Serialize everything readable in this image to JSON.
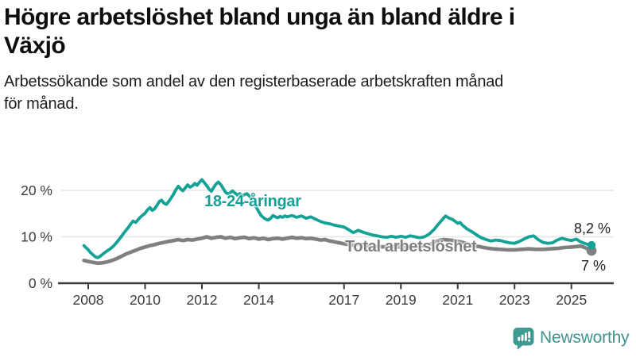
{
  "header": {
    "title_line1": "Högre arbetslöshet bland unga än bland äldre i",
    "title_line2": "Växjö",
    "subtitle_line1": "Arbetssökande som andel av den registerbaserade arbetskraften månad",
    "subtitle_line2": "för månad."
  },
  "footer": {
    "brand": "Newsworthy",
    "logo_icon": "bar-chart-speech-bubble-icon"
  },
  "colors": {
    "youth_series": "#14a296",
    "total_series": "#7f7f7f",
    "gridline": "#e5e5e5",
    "axis": "#3a3a3a",
    "tick_label": "#3c3c3c",
    "logo_teal": "#3d9b91"
  },
  "chart_data": {
    "type": "line",
    "title": "Högre arbetslöshet bland unga än bland äldre i Växjö",
    "subtitle": "Arbetssökande som andel av den registerbaserade arbetskraften månad för månad.",
    "unit": "%",
    "grid": true,
    "legend_position": "inline-labels",
    "x_range": [
      2007.85,
      2026.1
    ],
    "y_range": [
      0,
      23
    ],
    "x_ticks": [
      2008,
      2010,
      2012,
      2014,
      2017,
      2019,
      2021,
      2023,
      2025
    ],
    "y_ticks": [
      {
        "value": 0,
        "label": "0 %"
      },
      {
        "value": 10,
        "label": "10 %"
      },
      {
        "value": 20,
        "label": "20 %"
      }
    ],
    "series": [
      {
        "name": "18-24-åringar",
        "color": "#14a296",
        "end_label": "8,2 %",
        "end_value": 8.2,
        "points": [
          [
            2007.85,
            8.1
          ],
          [
            2008.0,
            7.2
          ],
          [
            2008.08,
            6.6
          ],
          [
            2008.17,
            6.1
          ],
          [
            2008.25,
            5.7
          ],
          [
            2008.33,
            5.5
          ],
          [
            2008.42,
            5.8
          ],
          [
            2008.5,
            6.2
          ],
          [
            2008.58,
            6.6
          ],
          [
            2008.67,
            7.0
          ],
          [
            2008.75,
            7.3
          ],
          [
            2008.83,
            7.7
          ],
          [
            2008.92,
            8.2
          ],
          [
            2009.0,
            8.8
          ],
          [
            2009.08,
            9.4
          ],
          [
            2009.17,
            10.1
          ],
          [
            2009.25,
            10.8
          ],
          [
            2009.33,
            11.4
          ],
          [
            2009.42,
            12.1
          ],
          [
            2009.5,
            12.8
          ],
          [
            2009.58,
            13.4
          ],
          [
            2009.67,
            13.1
          ],
          [
            2009.75,
            13.7
          ],
          [
            2009.83,
            14.2
          ],
          [
            2009.92,
            14.7
          ],
          [
            2010.0,
            15.1
          ],
          [
            2010.08,
            15.8
          ],
          [
            2010.17,
            16.3
          ],
          [
            2010.25,
            15.7
          ],
          [
            2010.33,
            16.0
          ],
          [
            2010.42,
            16.8
          ],
          [
            2010.5,
            17.6
          ],
          [
            2010.58,
            17.9
          ],
          [
            2010.67,
            17.2
          ],
          [
            2010.75,
            17.0
          ],
          [
            2010.83,
            17.6
          ],
          [
            2010.92,
            18.4
          ],
          [
            2011.0,
            19.2
          ],
          [
            2011.08,
            20.1
          ],
          [
            2011.17,
            20.9
          ],
          [
            2011.25,
            20.3
          ],
          [
            2011.33,
            19.9
          ],
          [
            2011.42,
            20.6
          ],
          [
            2011.5,
            21.2
          ],
          [
            2011.58,
            20.7
          ],
          [
            2011.67,
            21.0
          ],
          [
            2011.75,
            21.5
          ],
          [
            2011.83,
            21.1
          ],
          [
            2011.92,
            21.8
          ],
          [
            2012.0,
            22.3
          ],
          [
            2012.08,
            21.7
          ],
          [
            2012.17,
            21.0
          ],
          [
            2012.25,
            20.3
          ],
          [
            2012.33,
            19.8
          ],
          [
            2012.42,
            20.7
          ],
          [
            2012.5,
            21.4
          ],
          [
            2012.58,
            21.8
          ],
          [
            2012.67,
            21.2
          ],
          [
            2012.75,
            20.4
          ],
          [
            2012.83,
            19.6
          ],
          [
            2012.92,
            19.2
          ],
          [
            2013.0,
            19.5
          ],
          [
            2013.08,
            19.9
          ],
          [
            2013.17,
            19.4
          ],
          [
            2013.25,
            19.0
          ],
          [
            2013.33,
            19.3
          ],
          [
            2013.42,
            18.8
          ],
          [
            2013.5,
            19.1
          ],
          [
            2013.58,
            19.3
          ],
          [
            2013.67,
            18.8
          ],
          [
            2013.75,
            18.1
          ],
          [
            2013.83,
            17.2
          ],
          [
            2013.92,
            16.3
          ],
          [
            2014.0,
            15.4
          ],
          [
            2014.08,
            14.6
          ],
          [
            2014.17,
            14.1
          ],
          [
            2014.25,
            13.8
          ],
          [
            2014.33,
            13.6
          ],
          [
            2014.42,
            14.0
          ],
          [
            2014.5,
            14.6
          ],
          [
            2014.58,
            14.3
          ],
          [
            2014.67,
            14.1
          ],
          [
            2014.75,
            14.4
          ],
          [
            2014.83,
            14.2
          ],
          [
            2014.92,
            14.5
          ],
          [
            2015.0,
            14.3
          ],
          [
            2015.17,
            14.6
          ],
          [
            2015.33,
            14.2
          ],
          [
            2015.5,
            14.5
          ],
          [
            2015.67,
            14.0
          ],
          [
            2015.83,
            14.3
          ],
          [
            2016.0,
            13.8
          ],
          [
            2016.17,
            13.3
          ],
          [
            2016.33,
            13.0
          ],
          [
            2016.5,
            12.8
          ],
          [
            2016.67,
            12.5
          ],
          [
            2016.83,
            12.3
          ],
          [
            2017.0,
            12.1
          ],
          [
            2017.17,
            11.5
          ],
          [
            2017.33,
            10.9
          ],
          [
            2017.5,
            11.4
          ],
          [
            2017.67,
            11.0
          ],
          [
            2017.83,
            10.7
          ],
          [
            2018.0,
            10.4
          ],
          [
            2018.17,
            10.2
          ],
          [
            2018.33,
            10.0
          ],
          [
            2018.5,
            9.9
          ],
          [
            2018.67,
            10.1
          ],
          [
            2018.83,
            9.9
          ],
          [
            2019.0,
            10.1
          ],
          [
            2019.17,
            9.9
          ],
          [
            2019.33,
            10.2
          ],
          [
            2019.5,
            10.0
          ],
          [
            2019.67,
            9.8
          ],
          [
            2019.83,
            10.0
          ],
          [
            2020.0,
            10.6
          ],
          [
            2020.17,
            11.6
          ],
          [
            2020.33,
            12.8
          ],
          [
            2020.5,
            14.0
          ],
          [
            2020.58,
            14.5
          ],
          [
            2020.67,
            14.1
          ],
          [
            2020.83,
            13.7
          ],
          [
            2021.0,
            12.9
          ],
          [
            2021.08,
            13.1
          ],
          [
            2021.17,
            12.5
          ],
          [
            2021.33,
            11.7
          ],
          [
            2021.5,
            11.1
          ],
          [
            2021.67,
            10.4
          ],
          [
            2021.83,
            9.8
          ],
          [
            2022.0,
            9.4
          ],
          [
            2022.17,
            9.1
          ],
          [
            2022.33,
            9.3
          ],
          [
            2022.5,
            9.2
          ],
          [
            2022.67,
            8.9
          ],
          [
            2022.83,
            8.7
          ],
          [
            2023.0,
            8.6
          ],
          [
            2023.17,
            9.0
          ],
          [
            2023.33,
            9.5
          ],
          [
            2023.5,
            10.0
          ],
          [
            2023.67,
            10.2
          ],
          [
            2023.83,
            9.4
          ],
          [
            2024.0,
            8.8
          ],
          [
            2024.17,
            8.6
          ],
          [
            2024.33,
            8.7
          ],
          [
            2024.5,
            9.3
          ],
          [
            2024.67,
            9.7
          ],
          [
            2024.83,
            9.4
          ],
          [
            2025.0,
            9.2
          ],
          [
            2025.17,
            9.5
          ],
          [
            2025.33,
            8.9
          ],
          [
            2025.5,
            8.5
          ],
          [
            2025.71,
            8.2
          ]
        ]
      },
      {
        "name": "Total arbetslöshet",
        "color": "#7f7f7f",
        "end_label": "7 %",
        "end_value": 7.0,
        "points": [
          [
            2007.85,
            4.9
          ],
          [
            2008.0,
            4.7
          ],
          [
            2008.17,
            4.5
          ],
          [
            2008.33,
            4.3
          ],
          [
            2008.5,
            4.4
          ],
          [
            2008.67,
            4.6
          ],
          [
            2008.83,
            4.9
          ],
          [
            2009.0,
            5.3
          ],
          [
            2009.17,
            5.8
          ],
          [
            2009.33,
            6.3
          ],
          [
            2009.5,
            6.7
          ],
          [
            2009.67,
            7.1
          ],
          [
            2009.83,
            7.5
          ],
          [
            2010.0,
            7.8
          ],
          [
            2010.17,
            8.1
          ],
          [
            2010.33,
            8.3
          ],
          [
            2010.5,
            8.6
          ],
          [
            2010.67,
            8.8
          ],
          [
            2010.83,
            9.0
          ],
          [
            2011.0,
            9.2
          ],
          [
            2011.17,
            9.4
          ],
          [
            2011.33,
            9.2
          ],
          [
            2011.5,
            9.4
          ],
          [
            2011.67,
            9.3
          ],
          [
            2011.83,
            9.5
          ],
          [
            2012.0,
            9.7
          ],
          [
            2012.17,
            10.0
          ],
          [
            2012.33,
            9.7
          ],
          [
            2012.5,
            9.9
          ],
          [
            2012.67,
            10.0
          ],
          [
            2012.83,
            9.7
          ],
          [
            2013.0,
            9.9
          ],
          [
            2013.17,
            9.6
          ],
          [
            2013.33,
            9.8
          ],
          [
            2013.5,
            9.9
          ],
          [
            2013.67,
            9.6
          ],
          [
            2013.83,
            9.8
          ],
          [
            2014.0,
            9.5
          ],
          [
            2014.17,
            9.7
          ],
          [
            2014.33,
            9.4
          ],
          [
            2014.5,
            9.6
          ],
          [
            2014.67,
            9.7
          ],
          [
            2014.83,
            9.5
          ],
          [
            2015.0,
            9.7
          ],
          [
            2015.17,
            9.9
          ],
          [
            2015.33,
            9.7
          ],
          [
            2015.5,
            9.8
          ],
          [
            2015.67,
            9.6
          ],
          [
            2015.83,
            9.7
          ],
          [
            2016.0,
            9.5
          ],
          [
            2016.17,
            9.3
          ],
          [
            2016.33,
            9.4
          ],
          [
            2016.5,
            9.1
          ],
          [
            2016.67,
            8.9
          ],
          [
            2016.83,
            8.7
          ],
          [
            2017.0,
            8.5
          ],
          [
            2017.17,
            8.3
          ],
          [
            2017.33,
            8.2
          ],
          [
            2017.5,
            8.4
          ],
          [
            2017.67,
            8.3
          ],
          [
            2017.83,
            8.1
          ],
          [
            2018.0,
            8.0
          ],
          [
            2018.25,
            7.9
          ],
          [
            2018.5,
            7.8
          ],
          [
            2018.75,
            7.9
          ],
          [
            2019.0,
            7.8
          ],
          [
            2019.25,
            7.7
          ],
          [
            2019.5,
            7.8
          ],
          [
            2019.75,
            8.0
          ],
          [
            2020.0,
            8.3
          ],
          [
            2020.17,
            8.8
          ],
          [
            2020.33,
            9.2
          ],
          [
            2020.5,
            9.4
          ],
          [
            2020.67,
            9.3
          ],
          [
            2020.83,
            9.2
          ],
          [
            2021.0,
            9.0
          ],
          [
            2021.17,
            8.8
          ],
          [
            2021.33,
            8.5
          ],
          [
            2021.5,
            8.2
          ],
          [
            2021.67,
            8.0
          ],
          [
            2021.83,
            7.8
          ],
          [
            2022.0,
            7.6
          ],
          [
            2022.25,
            7.4
          ],
          [
            2022.5,
            7.3
          ],
          [
            2022.75,
            7.2
          ],
          [
            2023.0,
            7.2
          ],
          [
            2023.25,
            7.3
          ],
          [
            2023.5,
            7.4
          ],
          [
            2023.75,
            7.3
          ],
          [
            2024.0,
            7.3
          ],
          [
            2024.25,
            7.4
          ],
          [
            2024.5,
            7.5
          ],
          [
            2024.75,
            7.7
          ],
          [
            2025.0,
            7.8
          ],
          [
            2025.17,
            7.9
          ],
          [
            2025.33,
            8.0
          ],
          [
            2025.5,
            7.6
          ],
          [
            2025.71,
            7.0
          ]
        ]
      }
    ]
  }
}
